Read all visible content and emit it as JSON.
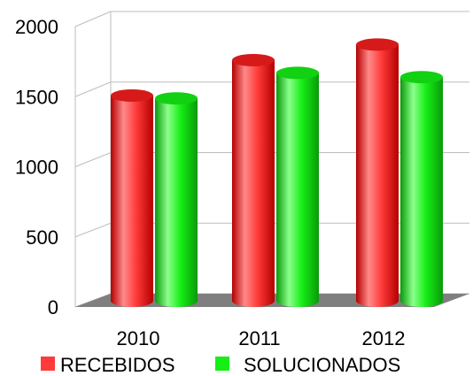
{
  "chart_data": {
    "type": "bar",
    "style": "3d-cylinder",
    "title": "",
    "xlabel": "",
    "ylabel": "",
    "categories": [
      "2010",
      "2011",
      "2012"
    ],
    "series": [
      {
        "name": "RECEBIDOS",
        "color": "#ff3a3a",
        "values": [
          1450,
          1700,
          1810
        ]
      },
      {
        "name": "SOLUCIONADOS",
        "color": "#16ee16",
        "values": [
          1430,
          1610,
          1580
        ]
      }
    ],
    "ylim": [
      0,
      2000
    ],
    "yticks": [
      "0",
      "500",
      "1000",
      "1500",
      "2000"
    ],
    "grid": true,
    "legend_position": "bottom"
  }
}
